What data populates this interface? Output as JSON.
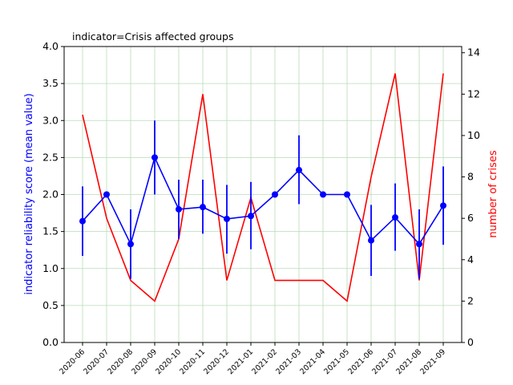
{
  "chart_data": {
    "type": "line",
    "title": "indicator=Crisis affected groups",
    "categories": [
      "2020-06",
      "2020-07",
      "2020-08",
      "2020-09",
      "2020-10",
      "2020-11",
      "2020-12",
      "2021-01",
      "2021-02",
      "2021-03",
      "2021-04",
      "2021-05",
      "2021-06",
      "2021-07",
      "2021-08",
      "2021-09"
    ],
    "ylabel_left": "indicator reliability score (mean value)",
    "ylabel_right": "number of crises",
    "ylim_left": [
      0,
      4.0
    ],
    "ylim_right": [
      0,
      14.3
    ],
    "yticks_left": [
      "0.0",
      "0.5",
      "1.0",
      "1.5",
      "2.0",
      "2.5",
      "3.0",
      "3.5",
      "4.0"
    ],
    "yticks_right": [
      "0",
      "2",
      "4",
      "6",
      "8",
      "10",
      "12",
      "14"
    ],
    "grid": true,
    "colors": {
      "left": "#0000ff",
      "right": "#ff0000",
      "grid": "#b7dcb7"
    },
    "series": [
      {
        "name": "indicator reliability score (mean value)",
        "axis": "left",
        "values": [
          1.64,
          2.0,
          1.33,
          2.5,
          1.8,
          1.83,
          1.67,
          1.71,
          2.0,
          2.33,
          2.0,
          2.0,
          1.38,
          1.69,
          1.33,
          1.85
        ],
        "err_low": [
          1.17,
          2.0,
          0.86,
          2.0,
          1.4,
          1.47,
          1.2,
          1.26,
          2.0,
          1.87,
          2.0,
          2.0,
          0.9,
          1.24,
          0.86,
          1.32
        ],
        "err_high": [
          2.11,
          2.0,
          1.8,
          3.0,
          2.2,
          2.2,
          2.13,
          2.17,
          2.0,
          2.8,
          2.0,
          2.0,
          1.86,
          2.15,
          1.8,
          2.38
        ]
      },
      {
        "name": "number of crises",
        "axis": "right",
        "values": [
          11,
          6,
          3,
          2,
          5,
          12,
          3,
          7,
          3,
          3,
          3,
          2,
          8,
          13,
          3,
          13
        ]
      }
    ]
  }
}
